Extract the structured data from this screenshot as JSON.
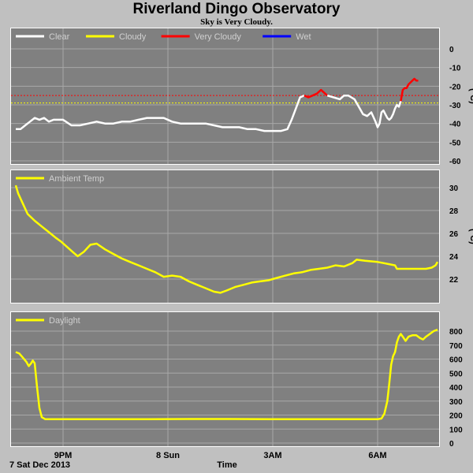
{
  "header": {
    "title": "Riverland Dingo Observatory",
    "subtitle": "Sky is Very Cloudy."
  },
  "footer": {
    "date_label": "7 Sat Dec 2013",
    "time_label": "Time"
  },
  "colors": {
    "background": "#c0c0c0",
    "plot_background": "#808080",
    "grid": "#a8a8a8",
    "clear": "#ffffff",
    "cloudy": "#ffff00",
    "very_cloudy": "#ff0000",
    "wet": "#0000ff",
    "ambient": "#ffff00",
    "daylight": "#ffff00"
  },
  "chart_data": [
    {
      "type": "line",
      "title": "Sky Temperature",
      "ylabel": "(°C)",
      "ylim": [
        -60,
        5
      ],
      "yticks": [
        0,
        -10,
        -20,
        -30,
        -40,
        -50,
        -60
      ],
      "xlim": [
        0,
        10.5
      ],
      "xticks": [
        {
          "x": 2,
          "label": "9PM"
        },
        {
          "x": 4.5,
          "label": "8 Sun"
        },
        {
          "x": 7,
          "label": "3AM"
        },
        {
          "x": 9.5,
          "label": "6AM"
        }
      ],
      "grid": true,
      "legend": [
        {
          "name": "Clear",
          "color": "#ffffff"
        },
        {
          "name": "Cloudy",
          "color": "#ffff00"
        },
        {
          "name": "Very Cloudy",
          "color": "#ff0000"
        },
        {
          "name": "Wet",
          "color": "#0000ff"
        }
      ],
      "thresholds": [
        {
          "y": -25,
          "color": "#ff0000"
        },
        {
          "y": -29,
          "color": "#ffff00"
        }
      ],
      "series": [
        {
          "name": "Clear",
          "color": "#ffffff",
          "points": [
            [
              0,
              -43
            ],
            [
              0.2,
              -43
            ],
            [
              0.4,
              -41
            ],
            [
              0.6,
              -39
            ],
            [
              0.8,
              -37
            ],
            [
              1.0,
              -38
            ],
            [
              1.2,
              -37
            ],
            [
              1.4,
              -39
            ],
            [
              1.6,
              -38
            ],
            [
              1.8,
              -38
            ],
            [
              2.0,
              -38
            ],
            [
              2.2,
              -41
            ],
            [
              2.4,
              -41
            ],
            [
              2.6,
              -40
            ],
            [
              2.8,
              -39
            ],
            [
              3.0,
              -40
            ],
            [
              3.2,
              -40
            ],
            [
              3.4,
              -39
            ],
            [
              3.6,
              -39
            ],
            [
              3.8,
              -38
            ],
            [
              4.0,
              -37
            ],
            [
              4.2,
              -37
            ],
            [
              4.4,
              -37
            ],
            [
              4.6,
              -39
            ],
            [
              4.8,
              -40
            ],
            [
              5.0,
              -40
            ],
            [
              5.2,
              -40
            ],
            [
              5.4,
              -40
            ],
            [
              5.6,
              -41
            ],
            [
              5.8,
              -42
            ],
            [
              6.0,
              -42
            ],
            [
              6.2,
              -42
            ],
            [
              6.4,
              -43
            ],
            [
              6.6,
              -43
            ],
            [
              6.8,
              -44
            ],
            [
              7.0,
              -44
            ],
            [
              7.2,
              -44
            ],
            [
              7.35,
              -43
            ],
            [
              7.45,
              -38
            ],
            [
              7.55,
              -32
            ],
            [
              7.65,
              -26
            ],
            [
              7.75,
              -25
            ]
          ]
        },
        {
          "name": "Very Cloudy",
          "color": "#ff0000",
          "points": [
            [
              7.75,
              -25
            ],
            [
              7.85,
              -26
            ],
            [
              7.95,
              -25
            ],
            [
              8.05,
              -24
            ],
            [
              8.15,
              -22
            ],
            [
              8.3,
              -25
            ]
          ]
        },
        {
          "name": "Clear",
          "color": "#ffffff",
          "points": [
            [
              8.3,
              -25
            ],
            [
              8.45,
              -26
            ],
            [
              8.6,
              -27
            ],
            [
              8.7,
              -25
            ],
            [
              8.8,
              -25
            ],
            [
              8.95,
              -27
            ],
            [
              9.05,
              -31
            ],
            [
              9.15,
              -35
            ],
            [
              9.25,
              -36
            ],
            [
              9.35,
              -34
            ],
            [
              9.45,
              -39
            ],
            [
              9.5,
              -42
            ],
            [
              9.6,
              -40
            ],
            [
              9.7,
              -34
            ],
            [
              9.8,
              -33
            ],
            [
              9.9,
              -35
            ],
            [
              10.0,
              -37
            ],
            [
              10.1,
              -38
            ],
            [
              10.2,
              -37
            ],
            [
              10.3,
              -35
            ],
            [
              10.4,
              -32
            ],
            [
              10.5,
              -30
            ],
            [
              10.6,
              -31
            ],
            [
              10.7,
              -28
            ]
          ]
        },
        {
          "name": "Very Cloudy",
          "color": "#ff0000",
          "points": [
            [
              10.7,
              -28
            ],
            [
              10.8,
              -22
            ],
            [
              10.9,
              -21
            ],
            [
              11.0,
              -21
            ],
            [
              11.1,
              -19
            ],
            [
              11.2,
              -18
            ],
            [
              11.3,
              -17
            ],
            [
              11.4,
              -16
            ],
            [
              11.5,
              -17
            ],
            [
              11.6,
              -17
            ]
          ]
        }
      ]
    },
    {
      "type": "line",
      "title": "Ambient Temp",
      "ylabel": "(°C)",
      "ylim": [
        20,
        31
      ],
      "yticks": [
        30,
        28,
        26,
        24,
        22
      ],
      "grid": true,
      "legend": [
        {
          "name": "Ambient Temp",
          "color": "#ffff00"
        }
      ],
      "series": [
        {
          "name": "Ambient Temp",
          "color": "#ffff00",
          "points": [
            [
              0,
              30.2
            ],
            [
              0.1,
              29.5
            ],
            [
              0.3,
              28.6
            ],
            [
              0.5,
              27.7
            ],
            [
              0.8,
              27.1
            ],
            [
              1.1,
              26.6
            ],
            [
              1.4,
              26.1
            ],
            [
              1.7,
              25.6
            ],
            [
              1.9,
              25.3
            ],
            [
              2.1,
              24.8
            ],
            [
              2.25,
              24.3
            ],
            [
              2.35,
              24.0
            ],
            [
              2.5,
              24.4
            ],
            [
              2.65,
              25.0
            ],
            [
              2.8,
              25.1
            ],
            [
              3.0,
              24.6
            ],
            [
              3.2,
              24.2
            ],
            [
              3.4,
              23.8
            ],
            [
              3.6,
              23.5
            ],
            [
              3.8,
              23.2
            ],
            [
              4.0,
              22.9
            ],
            [
              4.2,
              22.6
            ],
            [
              4.4,
              22.2
            ],
            [
              4.6,
              22.3
            ],
            [
              4.8,
              22.2
            ],
            [
              5.0,
              21.8
            ],
            [
              5.2,
              21.5
            ],
            [
              5.4,
              21.2
            ],
            [
              5.6,
              20.9
            ],
            [
              5.75,
              20.8
            ],
            [
              5.9,
              21.0
            ],
            [
              6.1,
              21.3
            ],
            [
              6.3,
              21.5
            ],
            [
              6.5,
              21.7
            ],
            [
              6.7,
              21.8
            ],
            [
              6.9,
              21.9
            ],
            [
              7.1,
              22.1
            ],
            [
              7.3,
              22.3
            ],
            [
              7.5,
              22.5
            ],
            [
              7.7,
              22.6
            ],
            [
              7.9,
              22.8
            ],
            [
              8.1,
              22.9
            ],
            [
              8.3,
              23.0
            ],
            [
              8.5,
              23.2
            ],
            [
              8.7,
              23.1
            ],
            [
              8.9,
              23.4
            ],
            [
              9.0,
              23.7
            ],
            [
              9.2,
              23.6
            ],
            [
              9.5,
              23.5
            ],
            [
              9.8,
              23.4
            ],
            [
              10.1,
              23.3
            ],
            [
              10.4,
              23.2
            ],
            [
              10.5,
              22.9
            ],
            [
              10.8,
              22.9
            ],
            [
              11.1,
              22.9
            ],
            [
              11.4,
              22.9
            ],
            [
              11.7,
              22.9
            ],
            [
              12.0,
              22.9
            ],
            [
              12.3,
              23.0
            ],
            [
              12.5,
              23.2
            ],
            [
              12.6,
              23.5
            ]
          ]
        }
      ]
    },
    {
      "type": "line",
      "title": "Daylight",
      "ylim": [
        0,
        850
      ],
      "yticks": [
        800,
        700,
        600,
        500,
        400,
        300,
        200,
        100,
        0
      ],
      "grid": true,
      "legend": [
        {
          "name": "Daylight",
          "color": "#ffff00"
        }
      ],
      "series": [
        {
          "name": "Daylight",
          "color": "#ffff00",
          "points": [
            [
              0,
              650
            ],
            [
              0.15,
              640
            ],
            [
              0.3,
              610
            ],
            [
              0.45,
              580
            ],
            [
              0.55,
              550
            ],
            [
              0.65,
              570
            ],
            [
              0.72,
              590
            ],
            [
              0.8,
              570
            ],
            [
              0.9,
              400
            ],
            [
              1.0,
              250
            ],
            [
              1.1,
              185
            ],
            [
              1.25,
              170
            ],
            [
              1.5,
              170
            ],
            [
              2.0,
              170
            ],
            [
              3.0,
              170
            ],
            [
              4.0,
              170
            ],
            [
              5.0,
              172
            ],
            [
              6.0,
              172
            ],
            [
              7.0,
              170
            ],
            [
              8.0,
              170
            ],
            [
              9.0,
              170
            ],
            [
              9.5,
              170
            ],
            [
              9.7,
              175
            ],
            [
              9.85,
              210
            ],
            [
              10.0,
              300
            ],
            [
              10.1,
              420
            ],
            [
              10.2,
              560
            ],
            [
              10.3,
              620
            ],
            [
              10.4,
              650
            ],
            [
              10.5,
              720
            ],
            [
              10.6,
              760
            ],
            [
              10.7,
              780
            ],
            [
              10.8,
              760
            ],
            [
              10.95,
              730
            ],
            [
              11.1,
              760
            ],
            [
              11.3,
              770
            ],
            [
              11.5,
              770
            ],
            [
              11.7,
              750
            ],
            [
              11.85,
              740
            ],
            [
              12.0,
              760
            ],
            [
              12.2,
              780
            ],
            [
              12.4,
              800
            ],
            [
              12.6,
              810
            ]
          ]
        }
      ]
    }
  ]
}
